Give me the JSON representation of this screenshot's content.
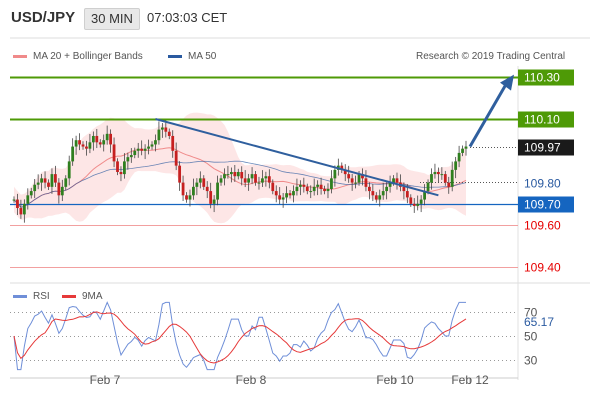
{
  "header": {
    "symbol": "USD/JPY",
    "timeframe": "30 MIN",
    "time": "07:03:03 CET"
  },
  "legend": {
    "ma20_label": "MA 20 + Bollinger Bands",
    "ma50_label": "MA 50",
    "copyright": "Research © 2019 Trading Central",
    "rsi_label": "RSI",
    "ma9_label": "9MA"
  },
  "colors": {
    "up_green": "#4e9a06",
    "down_red": "#e60000",
    "current_black": "#1a1a1a",
    "trend_blue": "#2f5f9e",
    "support_blue": "#1565c0",
    "bollinger_fill": "#fde0e0",
    "ma20": "#f08a8a",
    "ma50": "#2a5aa0",
    "rsi_line": "#6f8fd8",
    "rsi_ma": "#e63a3a"
  },
  "chart_data": {
    "type": "candlestick",
    "x_tick_labels": [
      "Feb 7",
      "Feb 8",
      "Feb 10",
      "Feb 12"
    ],
    "y_tick_labels": [
      "109.40",
      "109.60",
      "109.70",
      "109.80",
      "109.97",
      "110.10",
      "110.30"
    ],
    "ylim": [
      109.35,
      110.35
    ],
    "price_close": [
      109.72,
      109.68,
      109.65,
      109.7,
      109.74,
      109.76,
      109.79,
      109.8,
      109.82,
      109.8,
      109.78,
      109.84,
      109.8,
      109.74,
      109.78,
      109.82,
      109.9,
      109.97,
      110.0,
      109.98,
      109.97,
      109.96,
      109.99,
      110.02,
      109.99,
      109.98,
      110.0,
      110.03,
      109.98,
      109.9,
      109.85,
      109.84,
      109.9,
      109.92,
      109.93,
      109.95,
      109.96,
      109.95,
      109.96,
      109.97,
      109.98,
      110.0,
      110.05,
      110.06,
      110.04,
      110.02,
      109.95,
      109.88,
      109.8,
      109.74,
      109.72,
      109.74,
      109.78,
      109.8,
      109.82,
      109.78,
      109.76,
      109.7,
      109.72,
      109.8,
      109.82,
      109.84,
      109.84,
      109.85,
      109.83,
      109.85,
      109.82,
      109.8,
      109.82,
      109.84,
      109.8,
      109.8,
      109.82,
      109.83,
      109.8,
      109.76,
      109.74,
      109.72,
      109.73,
      109.75,
      109.74,
      109.76,
      109.78,
      109.79,
      109.78,
      109.76,
      109.76,
      109.78,
      109.79,
      109.77,
      109.76,
      109.77,
      109.82,
      109.86,
      109.88,
      109.86,
      109.84,
      109.82,
      109.8,
      109.8,
      109.84,
      109.82,
      109.78,
      109.76,
      109.74,
      109.72,
      109.74,
      109.76,
      109.78,
      109.8,
      109.82,
      109.8,
      109.78,
      109.76,
      109.73,
      109.7,
      109.69,
      109.7,
      109.72,
      109.76,
      109.8,
      109.84,
      109.85,
      109.84,
      109.84,
      109.8,
      109.78,
      109.86,
      109.9,
      109.94,
      109.96,
      109.97
    ],
    "support_resistance": [
      {
        "label": "110.30",
        "value": 110.3,
        "kind": "resistance"
      },
      {
        "label": "110.10",
        "value": 110.1,
        "kind": "resistance"
      },
      {
        "label": "109.97",
        "value": 109.97,
        "kind": "current"
      },
      {
        "label": "109.80",
        "value": 109.8,
        "kind": "previous"
      },
      {
        "label": "109.70",
        "value": 109.7,
        "kind": "pivot"
      },
      {
        "label": "109.60",
        "value": 109.6,
        "kind": "support"
      },
      {
        "label": "109.40",
        "value": 109.4,
        "kind": "support"
      }
    ],
    "rsi": {
      "current": "65.17",
      "levels": [
        "70",
        "50",
        "30"
      ],
      "ylim": [
        20,
        80
      ]
    }
  }
}
